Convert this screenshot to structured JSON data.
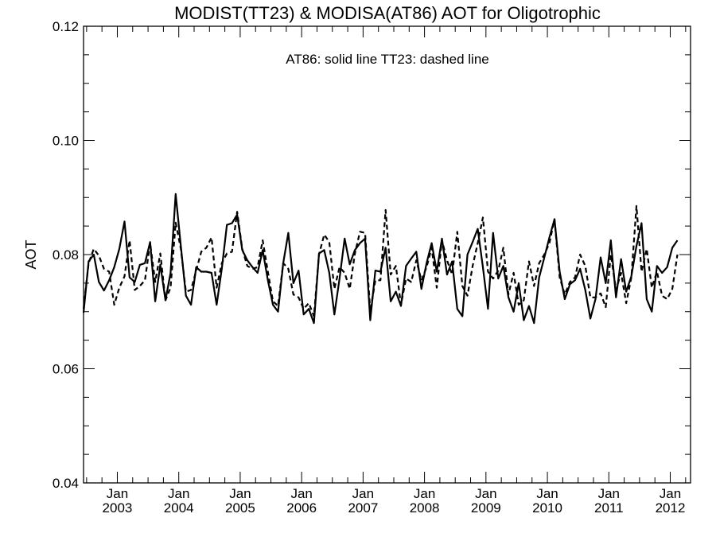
{
  "chart_data": {
    "type": "line",
    "title": "MODIST(TT23) & MODISA(AT86)  AOT for Oligotrophic",
    "annotation": "AT86: solid line   TT23: dashed line",
    "xlabel": "",
    "ylabel": "AOT",
    "xlim": [
      2002.45,
      2012.33
    ],
    "ylim": [
      0.04,
      0.12
    ],
    "y_ticks": [
      0.04,
      0.06,
      0.08,
      0.1,
      0.12
    ],
    "y_tick_labels": [
      "0.04",
      "0.06",
      "0.08",
      "0.10",
      "0.12"
    ],
    "x_ticks": [
      {
        "month": "Jan",
        "year": "2003",
        "x": 2003.0
      },
      {
        "month": "Jan",
        "year": "2004",
        "x": 2004.0
      },
      {
        "month": "Jan",
        "year": "2005",
        "x": 2005.0
      },
      {
        "month": "Jan",
        "year": "2006",
        "x": 2006.0
      },
      {
        "month": "Jan",
        "year": "2007",
        "x": 2007.0
      },
      {
        "month": "Jan",
        "year": "2008",
        "x": 2008.0
      },
      {
        "month": "Jan",
        "year": "2009",
        "x": 2009.0
      },
      {
        "month": "Jan",
        "year": "2010",
        "x": 2010.0
      },
      {
        "month": "Jan",
        "year": "2011",
        "x": 2011.0
      },
      {
        "month": "Jan",
        "year": "2012",
        "x": 2012.0
      }
    ],
    "grid": false,
    "x_start": 2002.45,
    "x_step": 0.08333,
    "series": [
      {
        "style": "solid",
        "values": [
          0.0698,
          0.0788,
          0.08,
          0.0752,
          0.0737,
          0.0755,
          0.0778,
          0.081,
          0.0858,
          0.076,
          0.0752,
          0.0782,
          0.0785,
          0.0822,
          0.0718,
          0.0782,
          0.072,
          0.0768,
          0.0906,
          0.0815,
          0.0728,
          0.0712,
          0.0778,
          0.077,
          0.077,
          0.0768,
          0.0712,
          0.0775,
          0.0852,
          0.0855,
          0.087,
          0.0808,
          0.079,
          0.0778,
          0.0768,
          0.0808,
          0.0755,
          0.0712,
          0.07,
          0.0785,
          0.0838,
          0.075,
          0.0772,
          0.0695,
          0.0705,
          0.068,
          0.0802,
          0.0808,
          0.0768,
          0.0695,
          0.0758,
          0.0828,
          0.0783,
          0.0808,
          0.082,
          0.0828,
          0.0685,
          0.0772,
          0.077,
          0.0812,
          0.0718,
          0.0735,
          0.071,
          0.078,
          0.0793,
          0.0805,
          0.074,
          0.0785,
          0.082,
          0.077,
          0.0828,
          0.0765,
          0.0788,
          0.0705,
          0.0692,
          0.08,
          0.0822,
          0.0845,
          0.0778,
          0.0705,
          0.0838,
          0.0758,
          0.078,
          0.0725,
          0.07,
          0.075,
          0.0685,
          0.071,
          0.068,
          0.076,
          0.0795,
          0.083,
          0.0862,
          0.077,
          0.0722,
          0.0748,
          0.0755,
          0.0775,
          0.0738,
          0.0688,
          0.0722,
          0.0795,
          0.075,
          0.0825,
          0.0725,
          0.0792,
          0.0735,
          0.0762,
          0.0815,
          0.0855,
          0.0722,
          0.07,
          0.078,
          0.0768,
          0.0778,
          0.0812,
          0.0825
        ]
      },
      {
        "style": "dashed",
        "values": [
          0.0705,
          0.0785,
          0.081,
          0.0798,
          0.0775,
          0.077,
          0.0712,
          0.0742,
          0.0762,
          0.0825,
          0.0738,
          0.0745,
          0.0755,
          0.082,
          0.0752,
          0.0802,
          0.072,
          0.0742,
          0.0856,
          0.081,
          0.0735,
          0.0738,
          0.0772,
          0.0805,
          0.0812,
          0.083,
          0.0742,
          0.0785,
          0.0802,
          0.0805,
          0.0875,
          0.081,
          0.078,
          0.0775,
          0.0778,
          0.0825,
          0.077,
          0.0718,
          0.071,
          0.0785,
          0.0775,
          0.073,
          0.0725,
          0.0705,
          0.0715,
          0.0692,
          0.08,
          0.0835,
          0.0822,
          0.074,
          0.0778,
          0.0768,
          0.074,
          0.0802,
          0.084,
          0.0838,
          0.07,
          0.0755,
          0.0755,
          0.0878,
          0.0765,
          0.078,
          0.0712,
          0.0758,
          0.0752,
          0.079,
          0.0755,
          0.0778,
          0.0812,
          0.0742,
          0.0825,
          0.079,
          0.0765,
          0.084,
          0.0745,
          0.0728,
          0.078,
          0.082,
          0.0865,
          0.077,
          0.0758,
          0.0772,
          0.0812,
          0.073,
          0.0768,
          0.0712,
          0.072,
          0.0788,
          0.0745,
          0.0785,
          0.08,
          0.082,
          0.0862,
          0.076,
          0.073,
          0.0752,
          0.076,
          0.08,
          0.078,
          0.0725,
          0.0725,
          0.0732,
          0.0708,
          0.08,
          0.0738,
          0.0768,
          0.0715,
          0.076,
          0.0885,
          0.077,
          0.081,
          0.0742,
          0.077,
          0.0728,
          0.0722,
          0.074,
          0.08
        ]
      }
    ]
  }
}
